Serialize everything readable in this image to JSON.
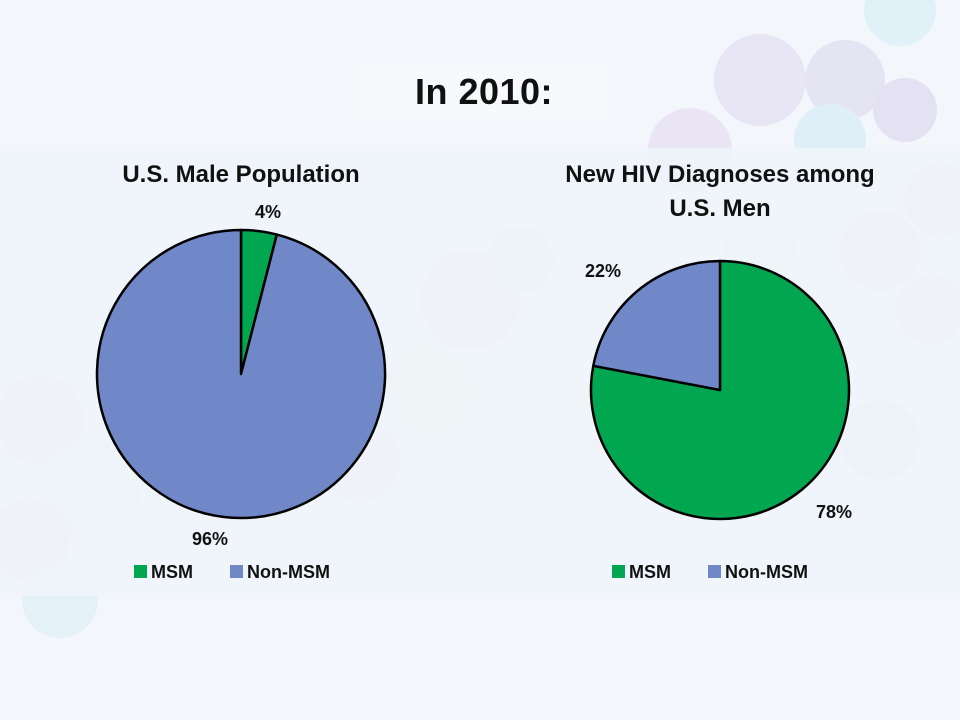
{
  "slide": {
    "title": "In 2010:"
  },
  "colors": {
    "msm": "#00a650",
    "non_msm": "#7188c8",
    "outline": "#000000"
  },
  "chart_data": [
    {
      "type": "pie",
      "title": "U.S. Male Population",
      "categories": [
        "MSM",
        "Non-MSM"
      ],
      "values": [
        4,
        96
      ],
      "labels": [
        "4%",
        "96%"
      ],
      "legend_position": "bottom"
    },
    {
      "type": "pie",
      "title": "New HIV Diagnoses among U.S. Men",
      "title_lines": [
        "New HIV Diagnoses among",
        "U.S. Men"
      ],
      "categories": [
        "MSM",
        "Non-MSM"
      ],
      "values": [
        78,
        22
      ],
      "labels": [
        "78%",
        "22%"
      ],
      "legend_position": "bottom"
    }
  ]
}
